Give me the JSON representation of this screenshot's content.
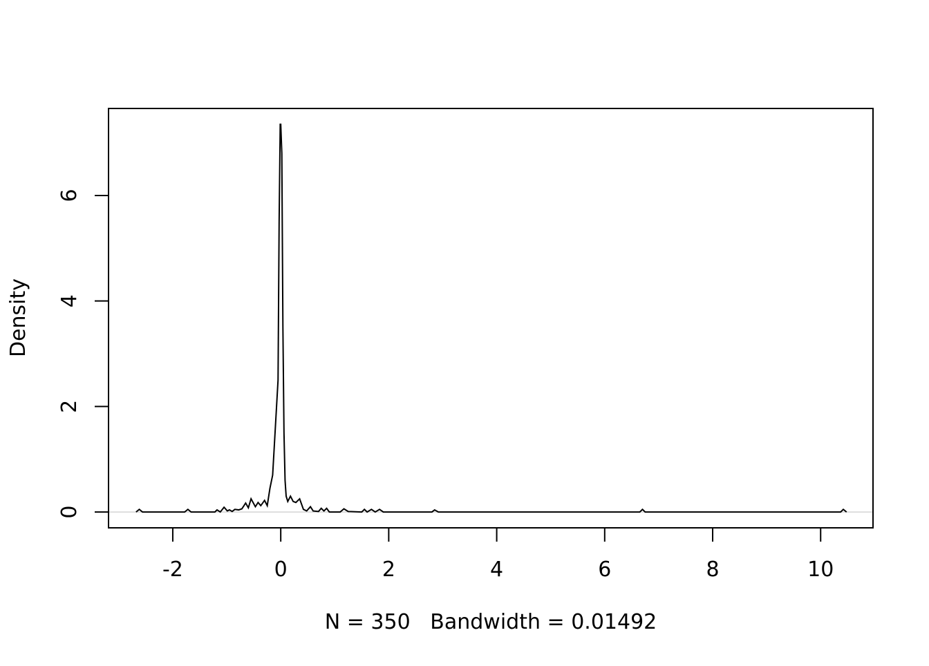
{
  "chart_data": {
    "type": "line",
    "xlabel": "N = 350   Bandwidth = 0.01492",
    "ylabel": "Density",
    "x": [
      -2.68,
      -2.62,
      -2.56,
      -1.78,
      -1.72,
      -1.66,
      -1.22,
      -1.18,
      -1.12,
      -1.05,
      -0.99,
      -0.95,
      -0.9,
      -0.85,
      -0.78,
      -0.72,
      -0.65,
      -0.6,
      -0.55,
      -0.47,
      -0.42,
      -0.37,
      -0.3,
      -0.25,
      -0.2,
      -0.15,
      -0.1,
      -0.05,
      -0.03,
      -0.01,
      0,
      0.02,
      0.04,
      0.06,
      0.08,
      0.1,
      0.13,
      0.18,
      0.23,
      0.28,
      0.35,
      0.42,
      0.48,
      0.55,
      0.6,
      0.7,
      0.75,
      0.8,
      0.85,
      0.9,
      1.1,
      1.17,
      1.25,
      1.5,
      1.55,
      1.6,
      1.68,
      1.75,
      1.83,
      1.9,
      2.8,
      2.85,
      2.92,
      6.65,
      6.7,
      6.75,
      10.37,
      10.42,
      10.48
    ],
    "series": [
      {
        "color": "#000000",
        "values": [
          0,
          0.05,
          0,
          0,
          0.05,
          0,
          0,
          0.04,
          0,
          0.09,
          0.02,
          0.04,
          0.01,
          0.05,
          0.04,
          0.06,
          0.17,
          0.08,
          0.25,
          0.1,
          0.18,
          0.12,
          0.22,
          0.12,
          0.45,
          0.7,
          1.6,
          2.5,
          5.5,
          7.35,
          7.35,
          6.8,
          3.5,
          1.5,
          0.6,
          0.3,
          0.2,
          0.3,
          0.2,
          0.18,
          0.25,
          0.05,
          0.02,
          0.1,
          0.02,
          0.01,
          0.07,
          0.02,
          0.07,
          0,
          0,
          0.06,
          0.01,
          0,
          0.05,
          0,
          0.05,
          0,
          0.05,
          0,
          0,
          0.04,
          0,
          0,
          0.05,
          0,
          0,
          0.05,
          0
        ]
      }
    ],
    "xlim": [
      -3.19,
      10.97
    ],
    "ylim": [
      -0.3,
      7.65
    ],
    "xticks": [
      -2,
      0,
      2,
      4,
      6,
      8,
      10
    ],
    "yticks": [
      0,
      2,
      4,
      6
    ],
    "zero_line": true
  }
}
